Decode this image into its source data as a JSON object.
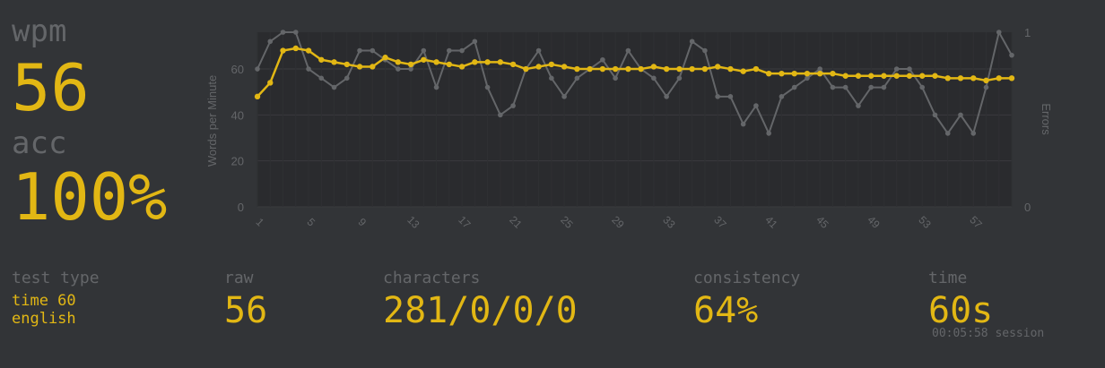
{
  "stats": {
    "wpm_label": "wpm",
    "wpm_value": "56",
    "acc_label": "acc",
    "acc_value": "100%"
  },
  "footer": {
    "test_type_label": "test type",
    "test_type_line1": "time 60",
    "test_type_line2": "english",
    "raw_label": "raw",
    "raw_value": "56",
    "characters_label": "characters",
    "characters_value": "281/0/0/0",
    "consistency_label": "consistency",
    "consistency_value": "64%",
    "time_label": "time",
    "time_value": "60s",
    "session_text": "00:05:58 session"
  },
  "colors": {
    "background": "#323437",
    "accent": "#e2b714",
    "muted": "#646669",
    "raw_line": "#646669"
  },
  "chart_data": {
    "type": "line",
    "x": [
      1,
      2,
      3,
      4,
      5,
      6,
      7,
      8,
      9,
      10,
      11,
      12,
      13,
      14,
      15,
      16,
      17,
      18,
      19,
      20,
      21,
      22,
      23,
      24,
      25,
      26,
      27,
      28,
      29,
      30,
      31,
      32,
      33,
      34,
      35,
      36,
      37,
      38,
      39,
      40,
      41,
      42,
      43,
      44,
      45,
      46,
      47,
      48,
      49,
      50,
      51,
      52,
      53,
      54,
      55,
      56,
      57,
      58,
      59,
      60
    ],
    "xticks": [
      1,
      5,
      9,
      13,
      17,
      21,
      25,
      29,
      33,
      37,
      41,
      45,
      49,
      53,
      57
    ],
    "ylabel": "Words per Minute",
    "ylim": [
      0,
      76
    ],
    "yticks": [
      0,
      20,
      40,
      60
    ],
    "y2label": "Errors",
    "y2lim": [
      0,
      1
    ],
    "y2ticks": [
      0,
      1
    ],
    "grid": true,
    "series": [
      {
        "role": "wpm",
        "color": "#e2b714",
        "values": [
          48,
          54,
          68,
          69,
          68,
          64,
          63,
          62,
          61,
          61,
          65,
          63,
          62,
          64,
          63,
          62,
          61,
          63,
          63,
          63,
          62,
          60,
          61,
          62,
          61,
          60,
          60,
          60,
          60,
          60,
          60,
          61,
          60,
          60,
          60,
          60,
          61,
          60,
          59,
          60,
          58,
          58,
          58,
          58,
          58,
          58,
          57,
          57,
          57,
          57,
          57,
          57,
          57,
          57,
          56,
          56,
          56,
          55,
          56,
          56
        ]
      },
      {
        "role": "raw",
        "color": "#646669",
        "values": [
          60,
          72,
          76,
          76,
          60,
          56,
          52,
          56,
          68,
          68,
          64,
          60,
          60,
          68,
          52,
          68,
          68,
          72,
          52,
          40,
          44,
          60,
          68,
          56,
          48,
          56,
          60,
          64,
          56,
          68,
          60,
          56,
          48,
          56,
          72,
          68,
          48,
          48,
          36,
          44,
          32,
          48,
          52,
          56,
          60,
          52,
          52,
          44,
          52,
          52,
          60,
          60,
          52,
          40,
          32,
          40,
          32,
          52,
          76,
          66
        ]
      }
    ]
  }
}
